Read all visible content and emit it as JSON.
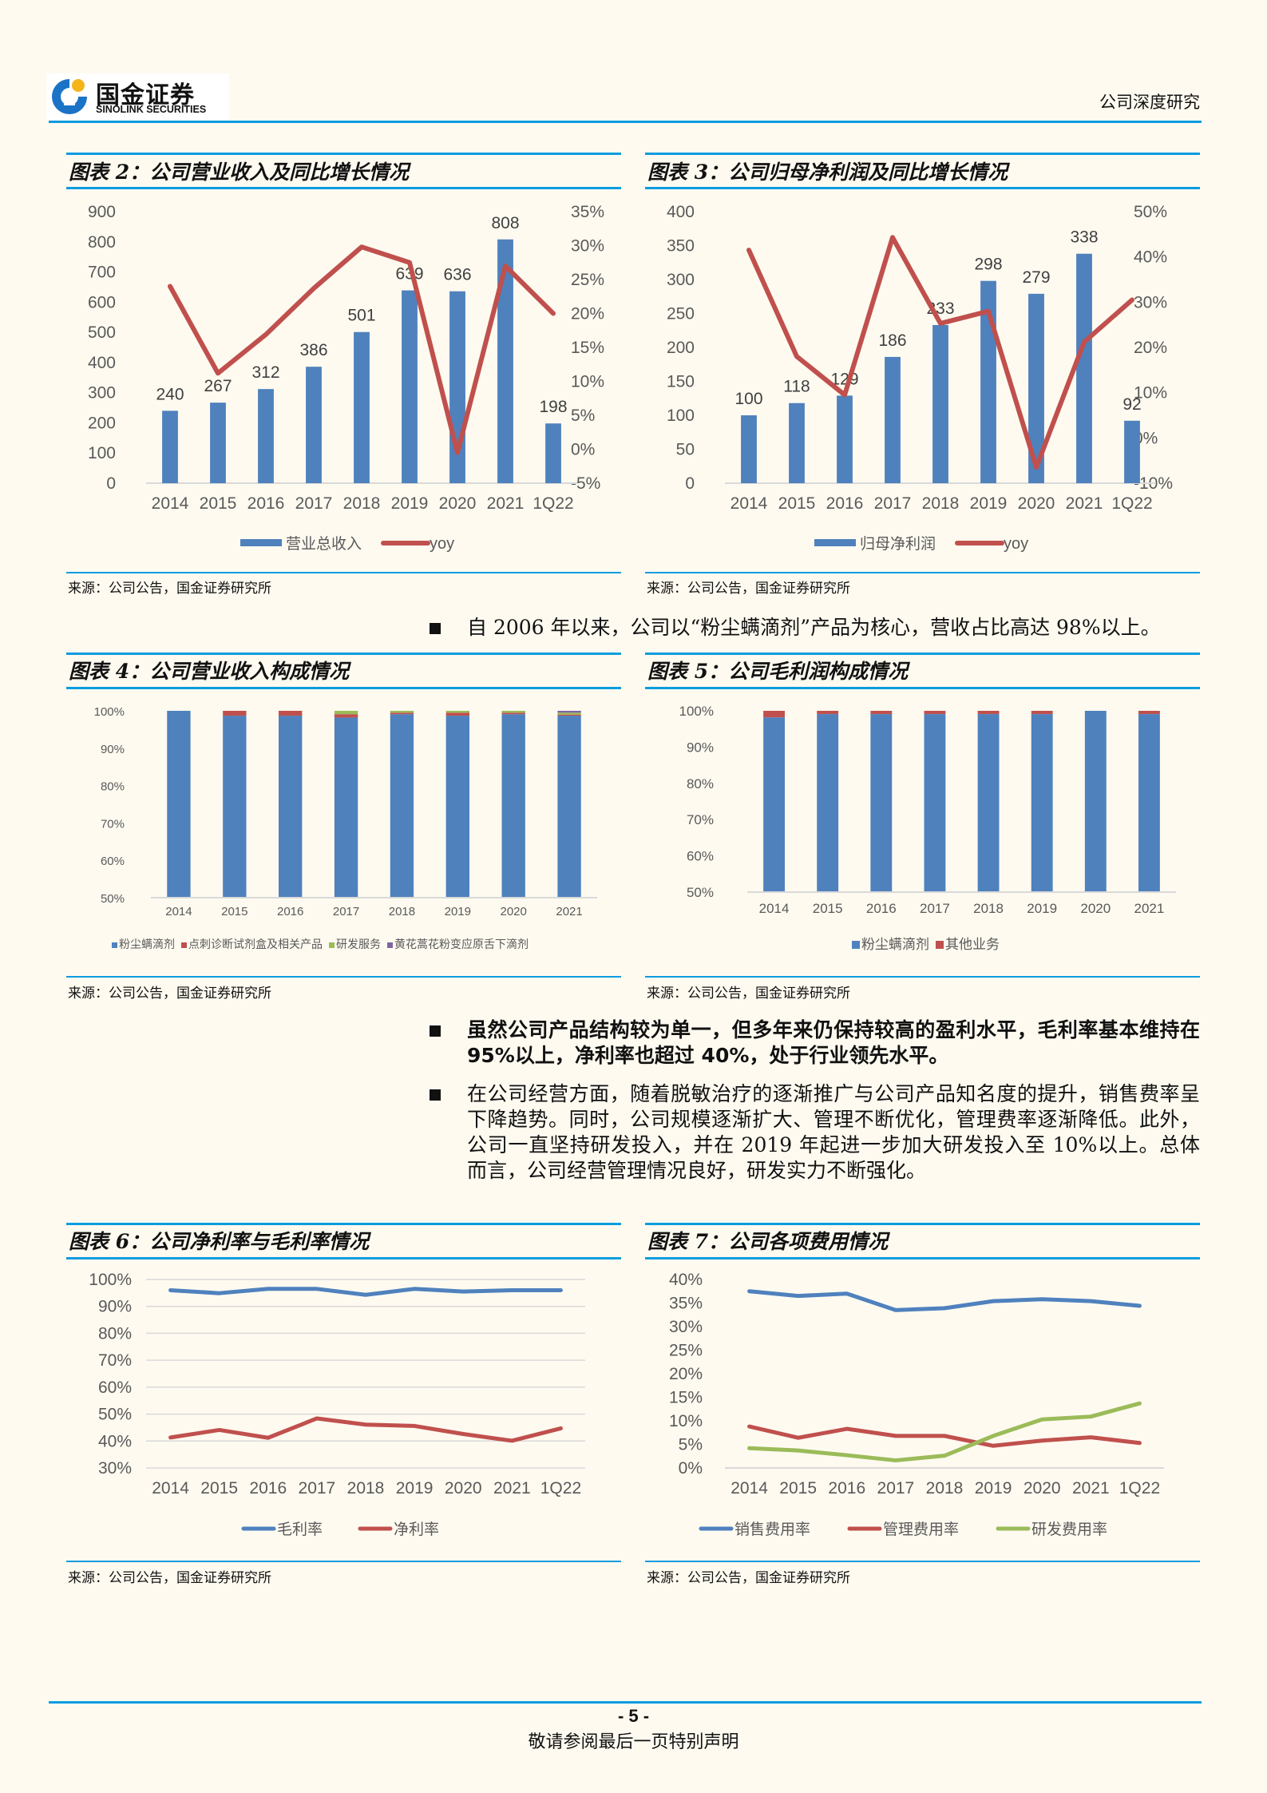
{
  "header": {
    "logo_cn": "国金证券",
    "logo_en": "SINOLINK SECURITIES",
    "doc_type": "公司深度研究",
    "accent_color": "#0a9ce0"
  },
  "figures": {
    "fig2": {
      "title": "图表 2：公司营业收入及同比增长情况",
      "source": "来源：公司公告，国金证券研究所"
    },
    "fig3": {
      "title": "图表 3：公司归母净利润及同比增长情况",
      "source": "来源：公司公告，国金证券研究所"
    },
    "fig4": {
      "title": "图表 4：公司营业收入构成情况",
      "source": "来源：公司公告，国金证券研究所"
    },
    "fig5": {
      "title": "图表 5：公司毛利润构成情况",
      "source": "来源：公司公告，国金证券研究所"
    },
    "fig6": {
      "title": "图表 6：公司净利率与毛利率情况",
      "source": "来源：公司公告，国金证券研究所"
    },
    "fig7": {
      "title": "图表 7：公司各项费用情况",
      "source": "来源：公司公告，国金证券研究所"
    }
  },
  "body": {
    "bullet1": "自 2006 年以来，公司以“粉尘螨滴剂”产品为核心，营收占比高达 98%以上。",
    "bullet2": "虽然公司产品结构较为单一，但多年来仍保持较高的盈利水平，毛利率基本维持在 95%以上，净利率也超过 40%，处于行业领先水平。",
    "bullet3": "在公司经营方面，随着脱敏治疗的逐渐推广与公司产品知名度的提升，销售费率呈下降趋势。同时，公司规模逐渐扩大、管理不断优化，管理费率逐渐降低。此外，公司一直坚持研发投入，并在 2019 年起进一步加大研发投入至 10%以上。总体而言，公司经营管理情况良好，研发实力不断强化。"
  },
  "footer": {
    "page": "- 5 -",
    "note": "敬请参阅最后一页特别声明"
  },
  "chart_data": [
    {
      "id": "fig2",
      "type": "bar+line",
      "title": "公司营业收入及同比增长情况",
      "categories": [
        "2014",
        "2015",
        "2016",
        "2017",
        "2018",
        "2019",
        "2020",
        "2021",
        "1Q22"
      ],
      "series": [
        {
          "name": "营业总收入",
          "type": "bar",
          "axis": "left",
          "color": "#4f81bd",
          "values": [
            240,
            267,
            312,
            386,
            501,
            639,
            636,
            808,
            198
          ]
        },
        {
          "name": "yoy",
          "type": "line",
          "axis": "right",
          "color": "#c0504d",
          "values": [
            24.0,
            11.2,
            16.9,
            23.7,
            29.8,
            27.5,
            -0.5,
            27.0,
            20.0
          ]
        }
      ],
      "y_left": {
        "min": 0,
        "max": 900,
        "step": 100,
        "ticks": [
          "0",
          "100",
          "200",
          "300",
          "400",
          "500",
          "600",
          "700",
          "800",
          "900"
        ]
      },
      "y_right": {
        "min": -5,
        "max": 35,
        "step": 5,
        "ticks": [
          "-5%",
          "0%",
          "5%",
          "10%",
          "15%",
          "20%",
          "25%",
          "30%",
          "35%"
        ]
      },
      "legend": [
        "营业总收入",
        "yoy"
      ],
      "legend_position": "bottom"
    },
    {
      "id": "fig3",
      "type": "bar+line",
      "title": "公司归母净利润及同比增长情况",
      "categories": [
        "2014",
        "2015",
        "2016",
        "2017",
        "2018",
        "2019",
        "2020",
        "2021",
        "1Q22"
      ],
      "series": [
        {
          "name": "归母净利润",
          "type": "bar",
          "axis": "left",
          "color": "#4f81bd",
          "values": [
            100,
            118,
            129,
            186,
            233,
            298,
            279,
            338,
            92
          ]
        },
        {
          "name": "yoy",
          "type": "line",
          "axis": "right",
          "color": "#c0504d",
          "values": [
            41.5,
            18.0,
            9.5,
            44.3,
            25.3,
            28.0,
            -6.5,
            21.2,
            30.5
          ]
        }
      ],
      "y_left": {
        "min": 0,
        "max": 400,
        "step": 50,
        "ticks": [
          "0",
          "50",
          "100",
          "150",
          "200",
          "250",
          "300",
          "350",
          "400"
        ]
      },
      "y_right": {
        "min": -10,
        "max": 50,
        "step": 10,
        "ticks": [
          "-10%",
          "0%",
          "10%",
          "20%",
          "30%",
          "40%",
          "50%"
        ]
      },
      "legend": [
        "归母净利润",
        "yoy"
      ],
      "legend_position": "bottom"
    },
    {
      "id": "fig4",
      "type": "stacked-bar",
      "title": "公司营业收入构成情况",
      "categories": [
        "2014",
        "2015",
        "2016",
        "2017",
        "2018",
        "2019",
        "2020",
        "2021"
      ],
      "series": [
        {
          "name": "粉尘螨滴剂",
          "color": "#4f81bd",
          "values": [
            100,
            98.7,
            98.7,
            98.2,
            99.1,
            98.7,
            99.1,
            98.7
          ]
        },
        {
          "name": "点刺诊断试剂盒及相关产品",
          "color": "#c0504d",
          "values": [
            0,
            1.3,
            1.3,
            0.9,
            0.4,
            0.8,
            0.4,
            0.3
          ]
        },
        {
          "name": "研发服务",
          "color": "#9bbb59",
          "values": [
            0,
            0,
            0,
            0.9,
            0.5,
            0.5,
            0.5,
            0.5
          ]
        },
        {
          "name": "黄花蒿花粉变应原舌下滴剂",
          "color": "#8064a2",
          "values": [
            0,
            0,
            0,
            0,
            0,
            0,
            0,
            0.5
          ]
        }
      ],
      "y": {
        "min": 50,
        "max": 100,
        "step": 10,
        "ticks": [
          "50%",
          "60%",
          "70%",
          "80%",
          "90%",
          "100%"
        ]
      },
      "legend_position": "bottom"
    },
    {
      "id": "fig5",
      "type": "stacked-bar",
      "title": "公司毛利润构成情况",
      "categories": [
        "2014",
        "2015",
        "2016",
        "2017",
        "2018",
        "2019",
        "2020",
        "2021"
      ],
      "series": [
        {
          "name": "粉尘螨滴剂",
          "color": "#4f81bd",
          "values": [
            98.2,
            99.1,
            99.1,
            99.1,
            99.1,
            99.1,
            100,
            99.1
          ]
        },
        {
          "name": "其他业务",
          "color": "#c0504d",
          "values": [
            1.8,
            0.9,
            0.9,
            0.9,
            0.9,
            0.9,
            0,
            0.9
          ]
        }
      ],
      "y": {
        "min": 50,
        "max": 100,
        "step": 10,
        "ticks": [
          "50%",
          "60%",
          "70%",
          "80%",
          "90%",
          "100%"
        ]
      },
      "legend_position": "bottom"
    },
    {
      "id": "fig6",
      "type": "line",
      "title": "公司净利率与毛利率情况",
      "categories": [
        "2014",
        "2015",
        "2016",
        "2017",
        "2018",
        "2019",
        "2020",
        "2021",
        "1Q22"
      ],
      "series": [
        {
          "name": "毛利率",
          "color": "#4f81bd",
          "values": [
            96.0,
            94.9,
            96.5,
            96.5,
            94.3,
            96.5,
            95.5,
            96.0,
            96.0
          ]
        },
        {
          "name": "净利率",
          "color": "#c0504d",
          "values": [
            41.3,
            44.1,
            41.2,
            48.4,
            46.1,
            45.6,
            42.6,
            40.1,
            44.7
          ]
        }
      ],
      "y": {
        "min": 30,
        "max": 100,
        "step": 10,
        "ticks": [
          "30%",
          "40%",
          "50%",
          "60%",
          "70%",
          "80%",
          "90%",
          "100%"
        ]
      },
      "grid": true,
      "legend_position": "bottom"
    },
    {
      "id": "fig7",
      "type": "line",
      "title": "公司各项费用情况",
      "categories": [
        "2014",
        "2015",
        "2016",
        "2017",
        "2018",
        "2019",
        "2020",
        "2021",
        "1Q22"
      ],
      "series": [
        {
          "name": "销售费用率",
          "color": "#4f81bd",
          "values": [
            37.5,
            36.5,
            37.0,
            33.5,
            33.9,
            35.4,
            35.8,
            35.4,
            34.4
          ]
        },
        {
          "name": "管理费用率",
          "color": "#c0504d",
          "values": [
            8.8,
            6.4,
            8.3,
            6.8,
            6.8,
            4.7,
            5.8,
            6.5,
            5.3
          ]
        },
        {
          "name": "研发费用率",
          "color": "#9bbb59",
          "values": [
            4.2,
            3.7,
            2.7,
            1.6,
            2.6,
            6.8,
            10.3,
            10.9,
            13.7
          ]
        }
      ],
      "y": {
        "min": 0,
        "max": 40,
        "step": 5,
        "ticks": [
          "0%",
          "5%",
          "10%",
          "15%",
          "20%",
          "25%",
          "30%",
          "35%",
          "40%"
        ]
      },
      "grid": false,
      "legend_position": "bottom"
    }
  ]
}
